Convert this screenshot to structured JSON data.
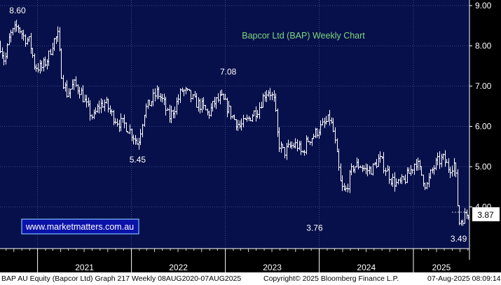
{
  "chart_data": {
    "type": "ohlc",
    "title": "Bapcor Ltd (BAP) Weekly Chart",
    "xlabel": "",
    "ylabel": "",
    "x_range": [
      "2020-08-08",
      "2025-08-07"
    ],
    "ylim": [
      3.2,
      9.0
    ],
    "y_ticks": [
      "9.00",
      "8.00",
      "7.00",
      "6.00",
      "5.00",
      "4.00"
    ],
    "x_ticks": [
      "2021",
      "2022",
      "2023",
      "2024",
      "2025"
    ],
    "grid": true,
    "last_price": "3.87",
    "annotations": [
      {
        "label": "8.60",
        "date": "2020-10-15",
        "value": 8.6
      },
      {
        "label": "5.45",
        "date": "2022-01-25",
        "value": 5.45
      },
      {
        "label": "7.08",
        "date": "2023-01-12",
        "value": 7.08
      },
      {
        "label": "3.76",
        "date": "2023-12-14",
        "value": 3.76
      },
      {
        "label": "3.49",
        "date": "2025-06-26",
        "value": 3.49
      }
    ],
    "series": [
      {
        "points": [
          [
            "2020-08-08",
            8.0
          ],
          [
            "2020-08-25",
            7.6
          ],
          [
            "2020-09-15",
            8.25
          ],
          [
            "2020-10-15",
            8.5
          ],
          [
            "2020-11-10",
            8.2
          ],
          [
            "2020-12-01",
            8.1
          ],
          [
            "2020-12-20",
            7.5
          ],
          [
            "2021-01-15",
            7.45
          ],
          [
            "2021-02-10",
            7.7
          ],
          [
            "2021-03-01",
            8.1
          ],
          [
            "2021-03-20",
            8.25
          ],
          [
            "2021-04-05",
            7.2
          ],
          [
            "2021-04-25",
            6.8
          ],
          [
            "2021-05-20",
            7.05
          ],
          [
            "2021-06-15",
            6.9
          ],
          [
            "2021-07-10",
            6.5
          ],
          [
            "2021-08-05",
            6.2
          ],
          [
            "2021-08-25",
            6.5
          ],
          [
            "2021-09-20",
            6.6
          ],
          [
            "2021-10-15",
            6.3
          ],
          [
            "2021-11-10",
            6.1
          ],
          [
            "2021-12-05",
            6.05
          ],
          [
            "2022-01-05",
            5.8
          ],
          [
            "2022-01-25",
            5.55
          ],
          [
            "2022-02-20",
            6.4
          ],
          [
            "2022-03-15",
            6.6
          ],
          [
            "2022-04-10",
            6.85
          ],
          [
            "2022-05-05",
            6.6
          ],
          [
            "2022-05-25",
            6.2
          ],
          [
            "2022-06-20",
            6.5
          ],
          [
            "2022-07-15",
            6.9
          ],
          [
            "2022-08-10",
            6.8
          ],
          [
            "2022-09-05",
            6.6
          ],
          [
            "2022-10-01",
            6.5
          ],
          [
            "2022-10-25",
            6.3
          ],
          [
            "2022-11-20",
            6.6
          ],
          [
            "2022-12-15",
            6.7
          ],
          [
            "2023-01-05",
            6.5
          ],
          [
            "2023-02-01",
            6.2
          ],
          [
            "2023-02-25",
            6.0
          ],
          [
            "2023-03-20",
            6.1
          ],
          [
            "2023-04-15",
            6.3
          ],
          [
            "2023-05-10",
            6.45
          ],
          [
            "2023-06-01",
            6.8
          ],
          [
            "2023-06-20",
            6.9
          ],
          [
            "2023-07-10",
            6.6
          ],
          [
            "2023-07-25",
            5.6
          ],
          [
            "2023-08-15",
            5.35
          ],
          [
            "2023-09-10",
            5.5
          ],
          [
            "2023-10-05",
            5.55
          ],
          [
            "2023-10-25",
            5.3
          ],
          [
            "2023-11-15",
            5.65
          ],
          [
            "2023-12-05",
            5.75
          ],
          [
            "2023-12-25",
            5.9
          ],
          [
            "2024-01-20",
            6.05
          ],
          [
            "2024-02-10",
            6.2
          ],
          [
            "2024-02-25",
            5.85
          ],
          [
            "2024-03-10",
            5.2
          ],
          [
            "2024-03-25",
            4.5
          ],
          [
            "2024-04-10",
            4.35
          ],
          [
            "2024-04-25",
            4.7
          ],
          [
            "2024-05-10",
            5.0
          ],
          [
            "2024-06-05",
            5.05
          ],
          [
            "2024-07-01",
            4.9
          ],
          [
            "2024-07-25",
            4.95
          ],
          [
            "2024-08-20",
            5.2
          ],
          [
            "2024-09-10",
            5.0
          ],
          [
            "2024-10-05",
            4.7
          ],
          [
            "2024-10-30",
            4.55
          ],
          [
            "2024-11-25",
            4.65
          ],
          [
            "2024-12-20",
            4.9
          ],
          [
            "2025-01-10",
            5.15
          ],
          [
            "2025-02-01",
            4.8
          ],
          [
            "2025-02-20",
            4.5
          ],
          [
            "2025-03-10",
            4.85
          ],
          [
            "2025-04-01",
            5.1
          ],
          [
            "2025-04-25",
            5.2
          ],
          [
            "2025-05-20",
            4.95
          ],
          [
            "2025-06-10",
            5.1
          ],
          [
            "2025-06-26",
            3.6
          ],
          [
            "2025-07-15",
            3.75
          ],
          [
            "2025-08-07",
            3.87
          ]
        ]
      }
    ],
    "website": "www.marketmatters.com.au"
  },
  "footer": {
    "left": "BAP AU Equity (Bapcor Ltd) Graph 217  Weekly 08AUG2020-07AUG2025",
    "center": "Copyright© 2025 Bloomberg Finance L.P.",
    "right": "07-Aug-2025 08:09:14"
  },
  "colors": {
    "background": "#07104a",
    "axis_panel": "#000000",
    "grid": "#4a5a9a",
    "bars": "#ffffff",
    "title": "#7dd87d",
    "website_text": "#ffffff",
    "website_border": "#7fbfff",
    "price_tag_bg": "#ffffff",
    "price_tag_text": "#000000"
  }
}
